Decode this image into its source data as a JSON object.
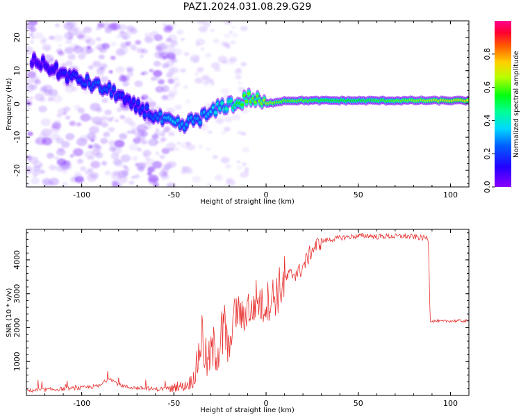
{
  "title": "PAZ1.2024.031.08.29.G29",
  "colors": {
    "snr_line": "#e8312f",
    "spectral_low": "#7a00ff",
    "spectral_high": "#ff004c",
    "background": "#ffffff"
  },
  "chart_data": [
    {
      "type": "heatmap",
      "title": "PAZ1.2024.031.08.29.G29",
      "xlabel": "Height of straight line (km)",
      "ylabel": "Frequency (Hz)",
      "xlim": [
        -130,
        110
      ],
      "ylim": [
        -25,
        25
      ],
      "xticks": [
        -100,
        -50,
        0,
        50,
        100
      ],
      "yticks": [
        -20,
        -10,
        0,
        10,
        20
      ],
      "colorbar": {
        "label": "Normalized spectral amplitude",
        "range": [
          0.0,
          1.0
        ],
        "ticks": [
          "0.0",
          "0.2",
          "0.4",
          "0.6",
          "0.8"
        ],
        "colormap": "gist_rainbow"
      },
      "ridge": {
        "height_km": [
          -125,
          -110,
          -100,
          -90,
          -80,
          -75,
          -65,
          -60,
          -55,
          -50,
          -45,
          -40,
          -35,
          -30,
          -25,
          -20,
          -15,
          -10,
          -5,
          0,
          10,
          20,
          30,
          50,
          75,
          100,
          108
        ],
        "frequency_hz": [
          13,
          9,
          7,
          5,
          3,
          0,
          -2,
          -4,
          -5,
          -6,
          -7,
          -5,
          -4,
          -3,
          -1,
          0,
          0,
          2,
          1,
          0,
          1,
          1,
          1,
          1,
          1,
          1,
          1
        ],
        "amplitude": [
          0.1,
          0.15,
          0.2,
          0.25,
          0.2,
          0.15,
          0.2,
          0.25,
          0.3,
          0.35,
          0.3,
          0.3,
          0.3,
          0.35,
          0.4,
          0.45,
          0.55,
          0.6,
          0.6,
          0.65,
          0.6,
          0.6,
          0.55,
          0.55,
          0.6,
          0.7,
          0.7
        ]
      },
      "grid": false
    },
    {
      "type": "line",
      "xlabel": "Height of straight line (km)",
      "ylabel": "SNR (10 * v/v)",
      "xlim": [
        -130,
        110
      ],
      "ylim": [
        0,
        4900
      ],
      "xticks": [
        -100,
        -50,
        0,
        50,
        100
      ],
      "yticks": [
        1000,
        2000,
        3000,
        4000
      ],
      "series": [
        {
          "x": [
            -130,
            -120,
            -110,
            -100,
            -90,
            -85,
            -80,
            -75,
            -70,
            -60,
            -55,
            -50,
            -48,
            -45,
            -42,
            -40,
            -38,
            -35,
            -32,
            -30,
            -28,
            -26,
            -25,
            -22,
            -20,
            -18,
            -15,
            -12,
            -10,
            -8,
            -5,
            -2,
            0,
            3,
            5,
            8,
            10,
            12,
            15,
            18,
            20,
            23,
            25,
            28,
            30,
            35,
            40,
            45,
            50,
            55,
            60,
            65,
            70,
            75,
            80,
            85,
            88,
            89,
            90,
            95,
            100,
            105,
            110
          ],
          "y": [
            120,
            140,
            170,
            200,
            260,
            500,
            300,
            220,
            200,
            160,
            180,
            220,
            300,
            250,
            350,
            450,
            700,
            1800,
            900,
            1200,
            1400,
            1300,
            1600,
            1900,
            1100,
            2300,
            2500,
            2200,
            2700,
            2400,
            2900,
            2600,
            2750,
            2900,
            2950,
            3200,
            3400,
            3500,
            3600,
            3650,
            3800,
            4100,
            4300,
            4450,
            4550,
            4600,
            4650,
            4680,
            4700,
            4720,
            4680,
            4700,
            4690,
            4700,
            4680,
            4650,
            4650,
            2200,
            2200,
            2180,
            2200,
            2200,
            2190
          ]
        }
      ],
      "grid": false
    }
  ]
}
